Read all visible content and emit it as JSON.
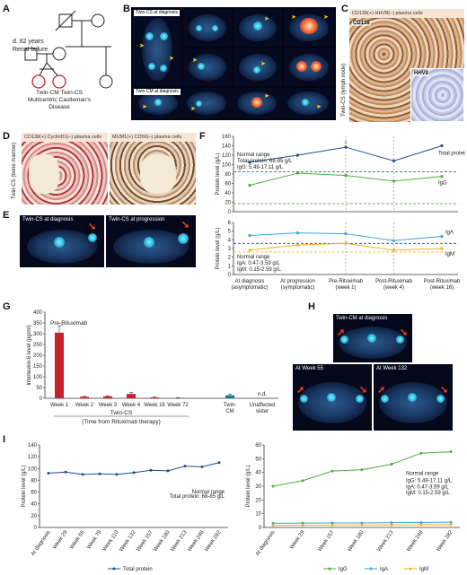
{
  "panel_letters": {
    "a": "A",
    "b": "B",
    "c": "C",
    "d": "D",
    "e": "E",
    "f": "F",
    "g": "G",
    "h": "H",
    "i": "I"
  },
  "pedigree": {
    "note_line1": "d. 82 years",
    "note_line2": "Renal failure",
    "twin_labels": "Twin-CM  Twin-CS",
    "disease_line1": "Multicentric Castleman's",
    "disease_line2": "Disease"
  },
  "panelB": {
    "tag_top": "Twin-CS at diagnosis",
    "tag_bottom": "Twin-CM at diagnosis"
  },
  "panelC": {
    "banner": "CD138(+) HHV8(–) plasma cells",
    "side": "Twin-CS (lymph node)",
    "stain1": "CD138",
    "stain2": "HHV8"
  },
  "panelD": {
    "banner1": "CD138(+) CyclinD1(–) plasma cells",
    "banner2": "MUM1(+) CD56(–) plasma cells",
    "side": "Twin-CS (bone marrow)"
  },
  "panelE": {
    "tag1": "Twin-CS at diagnosis",
    "tag2": "Twin-CS at progression"
  },
  "panelH": {
    "tag1": "Twin-CM at diagnosis",
    "tag2": "At Week 55",
    "tag3": "At Week 132"
  },
  "colors": {
    "total_protein": "#1f4e8c",
    "igg": "#4caf3c",
    "iga": "#3aa6dd",
    "igm": "#f2b21a",
    "ref_blue": "#1f4e8c",
    "ref_green": "#4caf3c",
    "ref_red": "#cf1f1f",
    "bar_red": "#c8202c",
    "bar_teal": "#1d7e8a"
  },
  "chart_data": [
    {
      "id": "F-top",
      "type": "line",
      "categories": [
        "At diagnosis (asymptomatic)",
        "At progression (symptomatic)",
        "Pre-Rituximab (week 1)",
        "Post-Rituximab (week 4)",
        "Post-Rituximab (week 16)"
      ],
      "ylabel": "Protein level (g/L)",
      "ylim": [
        0,
        160
      ],
      "yticks": [
        0,
        20,
        40,
        60,
        80,
        100,
        120,
        140,
        160
      ],
      "series": [
        {
          "name": "Total protein",
          "values": [
            105,
            120,
            137,
            108,
            140
          ]
        },
        {
          "name": "IgG",
          "values": [
            56,
            82,
            77,
            65,
            75
          ]
        }
      ],
      "reference_lines": [
        85,
        17
      ],
      "annotation_line1": "Normal range",
      "annotation_line2": "Total protein: 68-85 g/L",
      "annotation_line3": "IgG: 5.49-17.11 g/L"
    },
    {
      "id": "F-bottom",
      "type": "line",
      "categories": [
        "At diagnosis (asymptomatic)",
        "At progression (symptomatic)",
        "Pre-Rituximab (week 1)",
        "Post-Rituximab (week 4)",
        "Post-Rituximab (week 16)"
      ],
      "ylabel": "Protein level (g/L)",
      "ylim": [
        0,
        6
      ],
      "yticks": [
        0,
        1,
        2,
        3,
        4,
        5,
        6
      ],
      "series": [
        {
          "name": "IgA",
          "values": [
            4.5,
            4.8,
            4.7,
            3.9,
            4.4
          ]
        },
        {
          "name": "IgM",
          "values": [
            2.8,
            3.4,
            3.6,
            2.8,
            3.0
          ]
        }
      ],
      "reference_lines": [
        3.59,
        2.59
      ],
      "annotation_line1": "Normal range",
      "annotation_line2": "IgA: 0.47-3.59 g/L",
      "annotation_line3": "IgM: 0.15-2.59 g/L",
      "xtick_lines": [
        [
          "At diagnosis",
          "(asymptomatic)"
        ],
        [
          "At progression",
          "(symptomatic)"
        ],
        [
          "Pre-Rituximab",
          "(week 1)"
        ],
        [
          "Post-Rituximab",
          "(week 4)"
        ],
        [
          "Post-Rituximab",
          "(week 16)"
        ]
      ]
    },
    {
      "id": "G",
      "type": "bar",
      "categories": [
        "Week 1",
        "Week 2",
        "Week 3",
        "Week 4",
        "Week 16",
        "Week 72",
        "Twin-CM",
        "Unaffected sister"
      ],
      "values": [
        305,
        7,
        9,
        20,
        4,
        1,
        14,
        null
      ],
      "ylabel": "Interleukin-6 level (pg/ml)",
      "ylim": [
        0,
        400
      ],
      "yticks": [
        0,
        50,
        100,
        150,
        200,
        250,
        300,
        350,
        400
      ],
      "annotation": "Pre-Rituximab",
      "nd_label": "n.d.",
      "group_label_line1": "Twin-CS",
      "group_label_line2": "(Time from Rituximab therapy)",
      "xtick_twin_cm": [
        "Twin-",
        "CM"
      ],
      "xtick_sister": [
        "Unaffected",
        "sister"
      ]
    },
    {
      "id": "I-left",
      "type": "line",
      "categories": [
        "At diagnosis",
        "Week 29",
        "Week 55",
        "Week 79",
        "Week 110",
        "Week 132",
        "Week 157",
        "Week 180",
        "Week 213",
        "Week 248",
        "Week 282"
      ],
      "ylabel": "Protein level (g/L)",
      "ylim": [
        0,
        140
      ],
      "yticks": [
        0,
        20,
        40,
        60,
        80,
        100,
        120,
        140
      ],
      "series": [
        {
          "name": "Total protein",
          "values": [
            92,
            94,
            90,
            91,
            90,
            93,
            97,
            96,
            104,
            103,
            110
          ]
        }
      ],
      "annotation_line1": "Normal range",
      "annotation_line2": "Total protein: 68-85 g/L"
    },
    {
      "id": "I-right",
      "type": "line",
      "categories": [
        "At diagnosis",
        "Week 29",
        "Week 157",
        "Week 180",
        "Week 213",
        "Week 248",
        "Week 282"
      ],
      "ylabel": "Protein level (g/L)",
      "ylim": [
        0,
        60
      ],
      "yticks": [
        0,
        10,
        20,
        30,
        40,
        50,
        60
      ],
      "series": [
        {
          "name": "IgG",
          "values": [
            30,
            34,
            41,
            42,
            46,
            54,
            55
          ]
        },
        {
          "name": "IgA",
          "values": [
            3.0,
            3.2,
            3.3,
            3.3,
            3.5,
            3.6,
            3.8
          ]
        },
        {
          "name": "IgM",
          "values": [
            1.5,
            1.6,
            1.7,
            1.8,
            1.8,
            2.0,
            2.1
          ]
        }
      ],
      "annotation_line1": "Normal range",
      "annotation_line2": "IgG: 5.49-17.11 g/L",
      "annotation_line3": "IgA: 0.47-3.59 g/L",
      "annotation_line4": "IgM: 0.15-2.59 g/L"
    }
  ]
}
